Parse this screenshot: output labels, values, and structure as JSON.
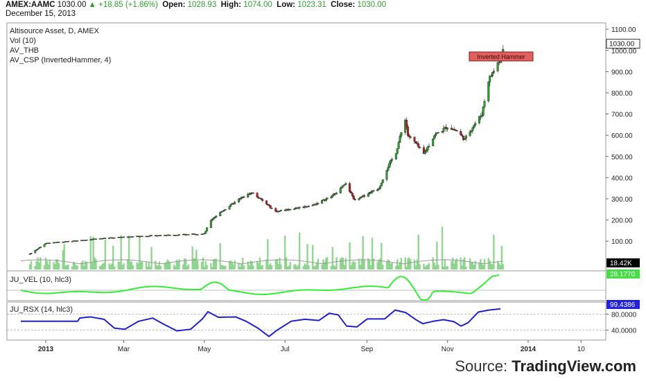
{
  "header": {
    "symbol": "AMEX:AAMC",
    "last": "1030.00",
    "change": "+18.85 (+1.86%)",
    "open_label": "Open:",
    "open": "1028.93",
    "high_label": "High:",
    "high": "1074.00",
    "low_label": "Low:",
    "low": "1023.31",
    "close_label": "Close:",
    "close": "1030.00",
    "date": "December 15, 2013"
  },
  "legend": {
    "title": "Altisource Asset, D, AMEX",
    "vol": "Vol (10)",
    "thb": "AV_THB",
    "csp": "AV_CSP (InvertedHammer, 4)"
  },
  "annotation": "Inverted Hammer",
  "source_prefix": "Source:",
  "source_brand": "TradingView.com",
  "colors": {
    "up": "#2e9e2e",
    "down": "#b22222",
    "vel": "#33ee33",
    "rsx": "#1f1fcc",
    "volume": "#7fcf7f"
  },
  "chart_data": [
    {
      "type": "candlestick",
      "title": "Altisource Asset, D, AMEX",
      "price_axis_ticks": [
        100,
        200,
        300,
        400,
        500,
        600,
        700,
        800,
        900,
        1000,
        1100
      ],
      "last_price_label": "1030.00",
      "ylim": [
        -40,
        1130
      ],
      "x_ticks": [
        "2013",
        "Mar",
        "May",
        "Jul",
        "Sep",
        "Nov",
        "2014",
        "10"
      ],
      "close_series": [
        {
          "date": "2012-12-20",
          "close": 40
        },
        {
          "date": "2013-01-01",
          "close": 90
        },
        {
          "date": "2013-01-20",
          "close": 100
        },
        {
          "date": "2013-02-10",
          "close": 112
        },
        {
          "date": "2013-03-01",
          "close": 120
        },
        {
          "date": "2013-03-20",
          "close": 125
        },
        {
          "date": "2013-04-10",
          "close": 130
        },
        {
          "date": "2013-05-01",
          "close": 135
        },
        {
          "date": "2013-05-06",
          "close": 200
        },
        {
          "date": "2013-05-14",
          "close": 240
        },
        {
          "date": "2013-05-28",
          "close": 300
        },
        {
          "date": "2013-06-06",
          "close": 330
        },
        {
          "date": "2013-06-14",
          "close": 290
        },
        {
          "date": "2013-06-24",
          "close": 240
        },
        {
          "date": "2013-07-08",
          "close": 255
        },
        {
          "date": "2013-07-22",
          "close": 270
        },
        {
          "date": "2013-08-05",
          "close": 310
        },
        {
          "date": "2013-08-16",
          "close": 370
        },
        {
          "date": "2013-08-23",
          "close": 290
        },
        {
          "date": "2013-09-03",
          "close": 330
        },
        {
          "date": "2013-09-10",
          "close": 350
        },
        {
          "date": "2013-09-16",
          "close": 440
        },
        {
          "date": "2013-09-23",
          "close": 520
        },
        {
          "date": "2013-09-30",
          "close": 680
        },
        {
          "date": "2013-10-02",
          "close": 600
        },
        {
          "date": "2013-10-08",
          "close": 560
        },
        {
          "date": "2013-10-14",
          "close": 510
        },
        {
          "date": "2013-10-22",
          "close": 600
        },
        {
          "date": "2013-11-01",
          "close": 640
        },
        {
          "date": "2013-11-08",
          "close": 620
        },
        {
          "date": "2013-11-14",
          "close": 580
        },
        {
          "date": "2013-11-20",
          "close": 640
        },
        {
          "date": "2013-11-27",
          "close": 700
        },
        {
          "date": "2013-12-02",
          "close": 860
        },
        {
          "date": "2013-12-09",
          "close": 940
        },
        {
          "date": "2013-12-15",
          "close": 1030
        }
      ],
      "annotation": {
        "date": "2013-12-12",
        "text": "Inverted Hammer"
      }
    },
    {
      "type": "bar",
      "title": "Vol (10)",
      "last_value_label": "18.42K",
      "note": "volume histogram (no numeric axis shown)"
    },
    {
      "type": "line",
      "title": "JU_VEL (10, hlc3)",
      "last_value_label": "28.1770"
    },
    {
      "type": "line",
      "title": "JU_RSX (14, hlc3)",
      "y_ticks": [
        40,
        80
      ],
      "tick_labels": [
        "40.0000",
        "80.0000"
      ],
      "last_value_label": "99.4386"
    }
  ]
}
